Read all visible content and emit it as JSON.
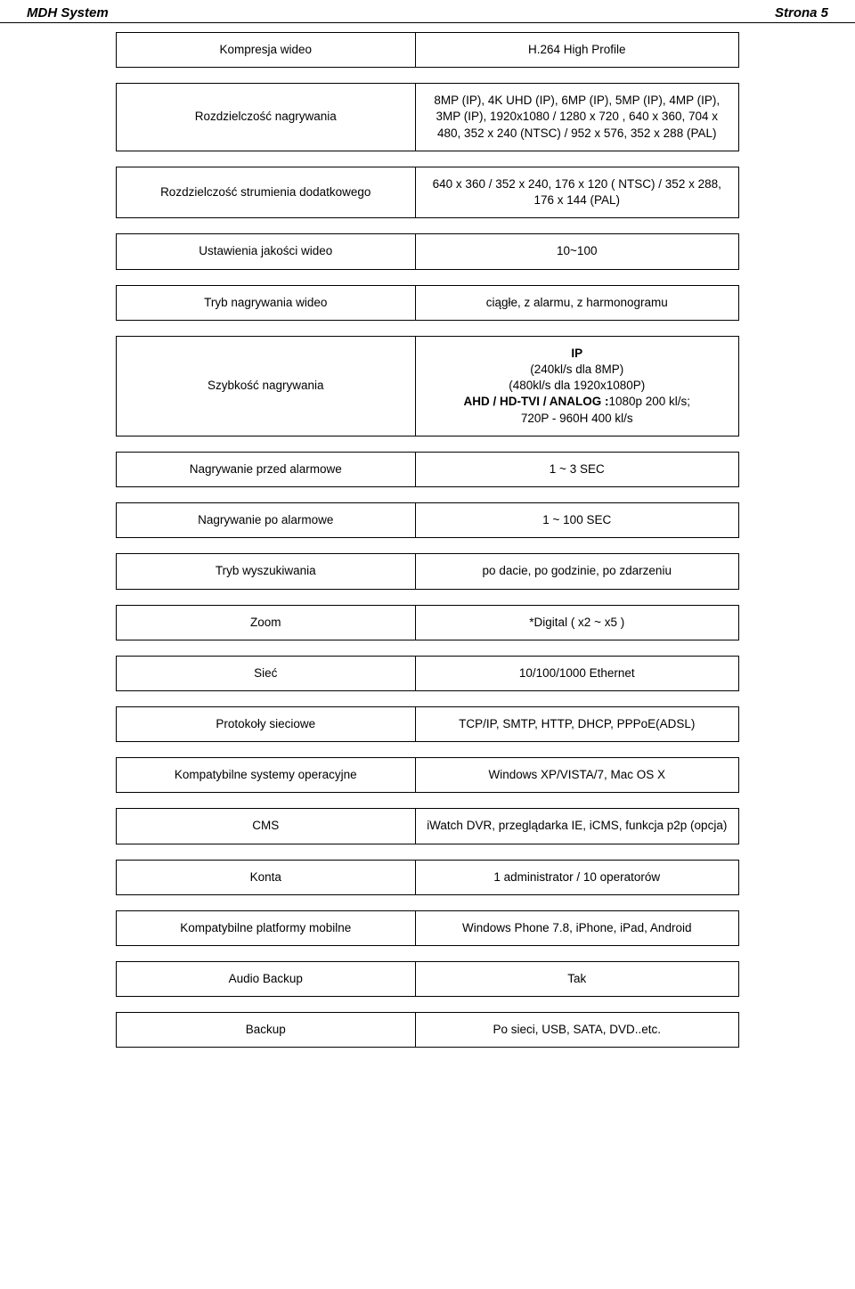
{
  "header": {
    "left": "MDH System",
    "right": "Strona 5"
  },
  "rows": [
    {
      "label": "Kompresja wideo",
      "value": "H.264 High Profile"
    },
    {
      "label": "Rozdzielczość nagrywania",
      "value": "8MP (IP), 4K UHD (IP), 6MP (IP), 5MP (IP), 4MP (IP), 3MP (IP), 1920x1080  / 1280 x 720 , 640 x 360, 704 x 480, 352 x 240 (NTSC) / 952 x 576, 352 x 288 (PAL)"
    },
    {
      "label": "Rozdzielczość strumienia dodatkowego",
      "value": "640 x 360 /  352 x 240, 176 x 120 ( NTSC) / 352 x 288, 176 x 144 (PAL)"
    },
    {
      "label": "Ustawienia jakości wideo",
      "value": "10~100"
    },
    {
      "label": "Tryb nagrywania wideo",
      "value": "ciągłe, z alarmu, z harmonogramu"
    },
    {
      "label": "Szybkość nagrywania",
      "value_html": "<b>IP</b><br>(240kl/s dla 8MP)<br>(480kl/s dla 1920x1080P)<br><b>AHD / HD-TVI / ANALOG :</b>1080p 200 kl/s;<br>720P - 960H 400 kl/s"
    },
    {
      "label": "Nagrywanie przed alarmowe",
      "value": "1 ~ 3 SEC"
    },
    {
      "label": "Nagrywanie po alarmowe",
      "value": "1 ~ 100 SEC"
    },
    {
      "label": "Tryb wyszukiwania",
      "value": "po dacie, po godzinie, po zdarzeniu"
    },
    {
      "label": "Zoom",
      "value": "*Digital ( x2 ~ x5 )"
    },
    {
      "label": "Sieć",
      "value": "10/100/1000 Ethernet"
    },
    {
      "label": "Protokoły sieciowe",
      "value": "TCP/IP, SMTP, HTTP, DHCP, PPPoE(ADSL)"
    },
    {
      "label": "Kompatybilne systemy operacyjne",
      "value": "Windows XP/VISTA/7, Mac OS X"
    },
    {
      "label": "CMS",
      "value": "iWatch DVR, przeglądarka IE, iCMS, funkcja p2p (opcja)"
    },
    {
      "label": "Konta",
      "value": "1 administrator / 10 operatorów"
    },
    {
      "label": "Kompatybilne platformy mobilne",
      "value": "Windows Phone 7.8, iPhone, iPad, Android"
    },
    {
      "label": "Audio Backup",
      "value": "Tak"
    },
    {
      "label": "Backup",
      "value": "Po sieci, USB, SATA, DVD..etc."
    }
  ]
}
